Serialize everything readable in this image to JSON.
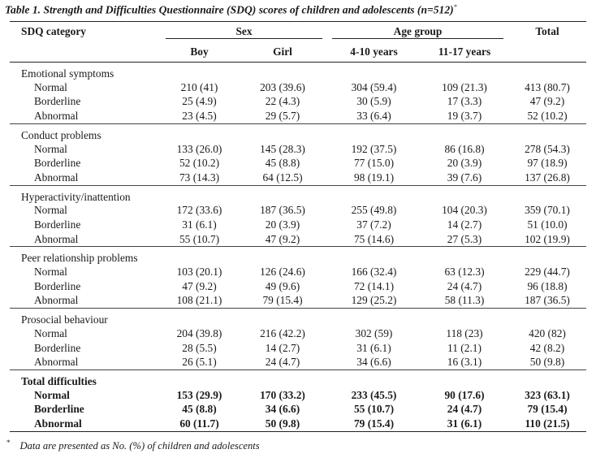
{
  "caption": {
    "text": "Table 1. Strength and Difficulties Questionnaire (SDQ) scores of children and adolescents (n=512)",
    "mark": "*"
  },
  "header": {
    "category": "SDQ category",
    "sex": "Sex",
    "age_group": "Age group",
    "total": "Total",
    "boy": "Boy",
    "girl": "Girl",
    "age1": "4-10 years",
    "age2": "11-17 years"
  },
  "sections": [
    {
      "title": "Emotional symptoms",
      "rows": [
        {
          "label": "Normal",
          "boy": "210 (41)",
          "girl": "203 (39.6)",
          "age1": "304 (59.4)",
          "age2": "109 (21.3)",
          "total": "413 (80.7)"
        },
        {
          "label": "Borderline",
          "boy": "25 (4.9)",
          "girl": "22 (4.3)",
          "age1": "30 (5.9)",
          "age2": "17 (3.3)",
          "total": "47 (9.2)"
        },
        {
          "label": "Abnormal",
          "boy": "23 (4.5)",
          "girl": "29 (5.7)",
          "age1": "33 (6.4)",
          "age2": "19 (3.7)",
          "total": "52 (10.2)"
        }
      ]
    },
    {
      "title": "Conduct problems",
      "rows": [
        {
          "label": "Normal",
          "boy": "133 (26.0)",
          "girl": "145 (28.3)",
          "age1": "192 (37.5)",
          "age2": "86 (16.8)",
          "total": "278 (54.3)"
        },
        {
          "label": "Borderline",
          "boy": "52 (10.2)",
          "girl": "45 (8.8)",
          "age1": "77 (15.0)",
          "age2": "20 (3.9)",
          "total": "97 (18.9)"
        },
        {
          "label": "Abnormal",
          "boy": "73 (14.3)",
          "girl": "64 (12.5)",
          "age1": "98 (19.1)",
          "age2": "39 (7.6)",
          "total": "137 (26.8)"
        }
      ]
    },
    {
      "title": "Hyperactivity/inattention",
      "rows": [
        {
          "label": "Normal",
          "boy": "172 (33.6)",
          "girl": "187 (36.5)",
          "age1": "255 (49.8)",
          "age2": "104 (20.3)",
          "total": "359 (70.1)"
        },
        {
          "label": "Borderline",
          "boy": "31 (6.1)",
          "girl": "20 (3.9)",
          "age1": "37 (7.2)",
          "age2": "14 (2.7)",
          "total": "51 (10.0)"
        },
        {
          "label": "Abnormal",
          "boy": "55 (10.7)",
          "girl": "47 (9.2)",
          "age1": "75 (14.6)",
          "age2": "27 (5.3)",
          "total": "102 (19.9)"
        }
      ]
    },
    {
      "title": "Peer relationship problems",
      "rows": [
        {
          "label": "Normal",
          "boy": "103 (20.1)",
          "girl": "126 (24.6)",
          "age1": "166 (32.4)",
          "age2": "63 (12.3)",
          "total": "229 (44.7)"
        },
        {
          "label": "Borderline",
          "boy": "47 (9.2)",
          "girl": "49 (9.6)",
          "age1": "72 (14.1)",
          "age2": "24 (4.7)",
          "total": "96 (18.8)"
        },
        {
          "label": "Abnormal",
          "boy": "108 (21.1)",
          "girl": "79 (15.4)",
          "age1": "129 (25.2)",
          "age2": "58 (11.3)",
          "total": "187 (36.5)"
        }
      ]
    },
    {
      "title": "Prosocial behaviour",
      "rows": [
        {
          "label": "Normal",
          "boy": "204 (39.8)",
          "girl": "216 (42.2)",
          "age1": "302 (59)",
          "age2": "118 (23)",
          "total": "420 (82)"
        },
        {
          "label": "Borderline",
          "boy": "28 (5.5)",
          "girl": "14 (2.7)",
          "age1": "31 (6.1)",
          "age2": "11 (2.1)",
          "total": "42 (8.2)"
        },
        {
          "label": "Abnormal",
          "boy": "26 (5.1)",
          "girl": "24 (4.7)",
          "age1": "34 (6.6)",
          "age2": "16 (3.1)",
          "total": "50 (9.8)"
        }
      ]
    },
    {
      "title": "Total difficulties",
      "bold": true,
      "rows": [
        {
          "label": "Normal",
          "boy": "153 (29.9)",
          "girl": "170 (33.2)",
          "age1": "233 (45.5)",
          "age2": "90 (17.6)",
          "total": "323 (63.1)"
        },
        {
          "label": "Borderline",
          "boy": "45 (8.8)",
          "girl": "34 (6.6)",
          "age1": "55 (10.7)",
          "age2": "24 (4.7)",
          "total": "79 (15.4)"
        },
        {
          "label": "Abnormal",
          "boy": "60 (11.7)",
          "girl": "50 (9.8)",
          "age1": "79 (15.4)",
          "age2": "31 (6.1)",
          "total": "110 (21.5)"
        }
      ]
    }
  ],
  "footnote": {
    "mark": "*",
    "text": "Data are presented as No. (%) of children and adolescents"
  }
}
